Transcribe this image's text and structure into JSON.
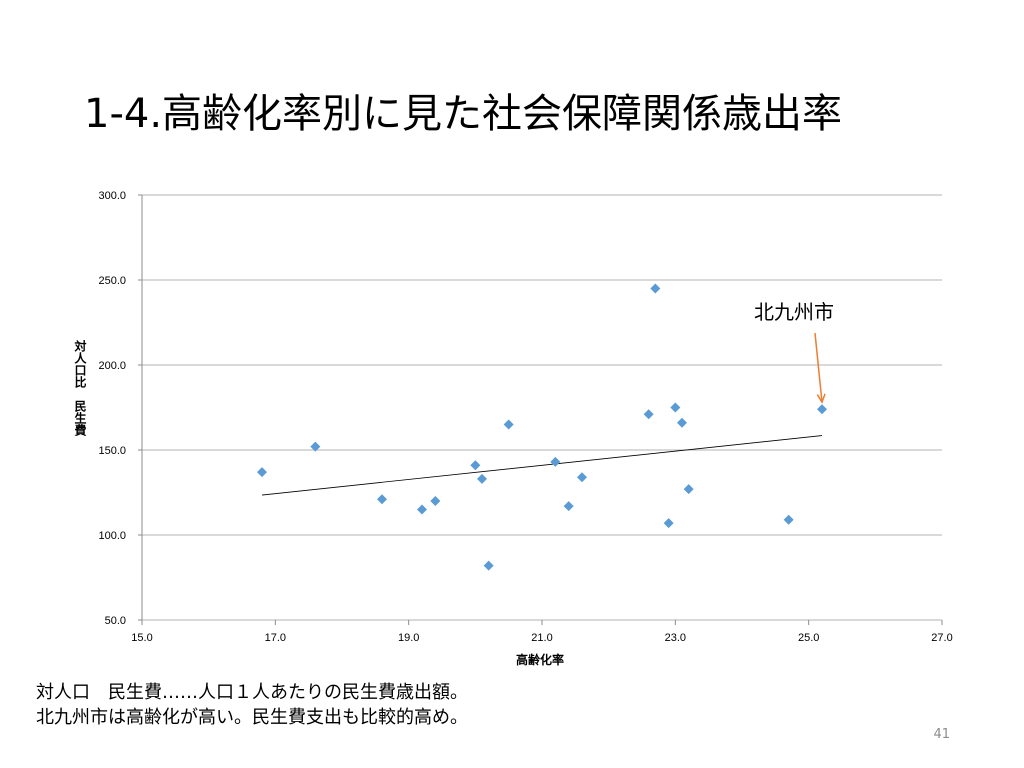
{
  "slide": {
    "title": "1-4.高齢化率別に見た社会保障関係歳出率",
    "notes": [
      "対人口　民生費……人口１人あたりの民生費歳出額。",
      "北九州市は高齢化が高い。民生費支出も比較的高め。"
    ],
    "page_number": "41",
    "callout": {
      "label": "北九州市",
      "color": "#ed7d31"
    }
  },
  "chart_data": {
    "type": "scatter",
    "xlabel": "高齢化率",
    "ylabel": "対人口比　民生費",
    "xlim": [
      15.0,
      27.0
    ],
    "ylim": [
      50.0,
      300.0
    ],
    "x_ticks": [
      "15.0",
      "17.0",
      "19.0",
      "21.0",
      "23.0",
      "25.0",
      "27.0"
    ],
    "y_ticks": [
      "50.0",
      "100.0",
      "150.0",
      "200.0",
      "250.0",
      "300.0"
    ],
    "grid": "horizontal",
    "marker_color": "#5b9bd5",
    "points": [
      {
        "x": 16.8,
        "y": 137
      },
      {
        "x": 17.6,
        "y": 152
      },
      {
        "x": 18.6,
        "y": 121
      },
      {
        "x": 19.2,
        "y": 115
      },
      {
        "x": 19.4,
        "y": 120
      },
      {
        "x": 20.0,
        "y": 141
      },
      {
        "x": 20.1,
        "y": 133
      },
      {
        "x": 20.2,
        "y": 82
      },
      {
        "x": 20.5,
        "y": 165
      },
      {
        "x": 21.2,
        "y": 143
      },
      {
        "x": 21.4,
        "y": 117
      },
      {
        "x": 21.6,
        "y": 134
      },
      {
        "x": 22.6,
        "y": 171
      },
      {
        "x": 22.7,
        "y": 245
      },
      {
        "x": 22.9,
        "y": 107
      },
      {
        "x": 23.0,
        "y": 175
      },
      {
        "x": 23.1,
        "y": 166
      },
      {
        "x": 23.2,
        "y": 127
      },
      {
        "x": 24.7,
        "y": 109
      },
      {
        "x": 25.2,
        "y": 174
      }
    ],
    "trendline": {
      "x": [
        16.8,
        25.2
      ],
      "y": [
        123.5,
        158.5
      ]
    },
    "highlight": {
      "x": 25.2,
      "y": 174
    }
  }
}
